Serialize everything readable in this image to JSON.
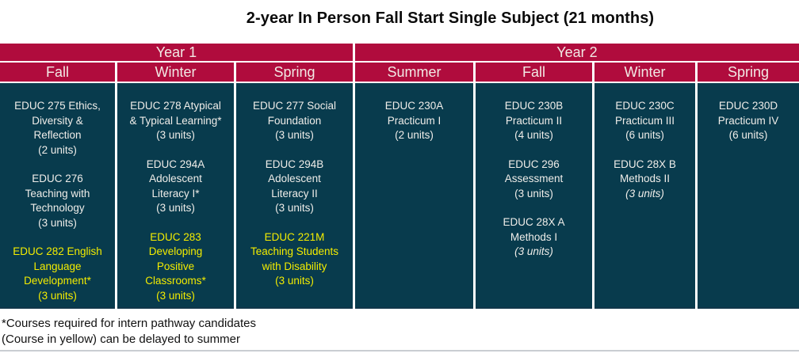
{
  "title": "2-year In Person Fall Start Single Subject (21 months)",
  "colors": {
    "header_bg": "#B00C3D",
    "cell_bg": "#083B4D",
    "highlight_yellow": "#F3EC00",
    "header_text": "#F2E9E5",
    "cell_text": "#EFEDE9",
    "divider": "#FFFFFF",
    "footnote_text": "#111111",
    "bottom_rule": "#C9CDD2"
  },
  "table": {
    "year_groups": [
      {
        "label": "Year 1",
        "span": 3
      },
      {
        "label": "Year 2",
        "span": 4
      }
    ],
    "columns": [
      {
        "term": "Fall",
        "year": "Year 1",
        "courses": [
          {
            "name": "EDUC 275 Ethics,\nDiversity &\nReflection",
            "units": "(2 units)",
            "hl": "none",
            "it": "normal"
          },
          {
            "name": "EDUC 276\nTeaching with\nTechnology",
            "units": "(3 units)",
            "hl": "none",
            "it": "normal"
          },
          {
            "name": "EDUC 282 English\nLanguage\nDevelopment*",
            "units": "(3 units)",
            "hl": "yellow",
            "it": "normal"
          }
        ]
      },
      {
        "term": "Winter",
        "year": "Year 1",
        "courses": [
          {
            "name": "EDUC 278 Atypical\n& Typical Learning*",
            "units": "(3 units)",
            "hl": "none",
            "it": "normal"
          },
          {
            "name": "EDUC 294A\nAdolescent\nLiteracy I*",
            "units": "(3 units)",
            "hl": "none",
            "it": "normal"
          },
          {
            "name": "EDUC 283\nDeveloping\nPositive\nClassrooms*",
            "units": "(3 units)",
            "hl": "yellow",
            "it": "normal"
          }
        ]
      },
      {
        "term": "Spring",
        "year": "Year 1",
        "courses": [
          {
            "name": "EDUC 277 Social\nFoundation",
            "units": "(3 units)",
            "hl": "none",
            "it": "normal"
          },
          {
            "name": "EDUC 294B\nAdolescent\nLiteracy II",
            "units": "(3 units)",
            "hl": "none",
            "it": "normal"
          },
          {
            "name": "EDUC 221M\nTeaching Students\nwith Disability",
            "units": "(3 units)",
            "hl": "yellow",
            "it": "normal"
          }
        ]
      },
      {
        "term": "Summer",
        "year": "Year 2",
        "courses": [
          {
            "name": "EDUC 230A\nPracticum I",
            "units": "(2 units)",
            "hl": "none",
            "it": "normal"
          }
        ]
      },
      {
        "term": "Fall",
        "year": "Year 2",
        "courses": [
          {
            "name": "EDUC 230B\nPracticum II",
            "units": "(4 units)",
            "hl": "none",
            "it": "normal"
          },
          {
            "name": "EDUC 296\nAssessment",
            "units": "(3 units)",
            "hl": "none",
            "it": "normal"
          },
          {
            "name": "EDUC 28X A\nMethods I",
            "units": "(3 units)",
            "hl": "none",
            "it": "italic"
          }
        ]
      },
      {
        "term": "Winter",
        "year": "Year 2",
        "courses": [
          {
            "name": "EDUC 230C\nPracticum III",
            "units": "(6 units)",
            "hl": "none",
            "it": "normal"
          },
          {
            "name": "EDUC 28X B\nMethods II",
            "units": "(3 units)",
            "hl": "none",
            "it": "italic"
          }
        ]
      },
      {
        "term": "Spring",
        "year": "Year 2",
        "courses": [
          {
            "name": "EDUC 230D\nPracticum IV",
            "units": "(6 units)",
            "hl": "none",
            "it": "normal"
          }
        ]
      }
    ]
  },
  "footnotes": [
    "*Courses required for intern pathway candidates",
    "(Course in yellow) can be delayed to summer"
  ]
}
